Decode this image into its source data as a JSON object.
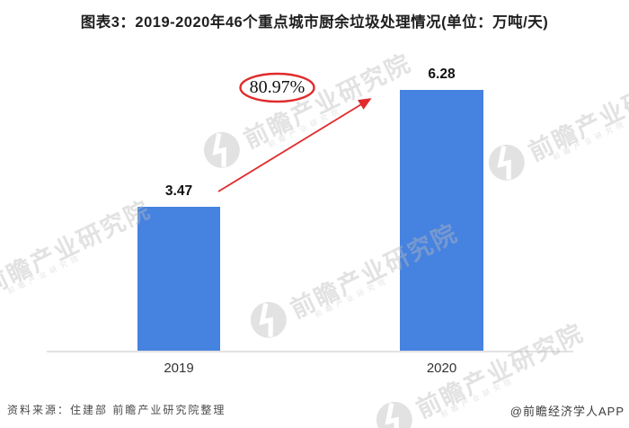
{
  "title": "图表3：2019-2020年46个重点城市厨余垃圾处理情况(单位：万吨/天)",
  "chart_data": {
    "type": "bar",
    "title": "图表3：2019-2020年46个重点城市厨余垃圾处理情况",
    "unit": "万吨/天",
    "categories": [
      "2019",
      "2020"
    ],
    "values": [
      3.47,
      6.28
    ],
    "value_labels": [
      "3.47",
      "6.28"
    ],
    "ylim": [
      0,
      6.8
    ],
    "grid": false,
    "legend": "none",
    "bar_color": "#4682E0",
    "annotation": {
      "text": "80.97%",
      "shape": "red-ellipse-with-arrow",
      "color": "#E02C2C",
      "meaning": "growth rate from 2019 to 2020"
    }
  },
  "watermark": {
    "text": "前瞻产业研究院"
  },
  "footer": {
    "source": "资料来源：住建部 前瞻产业研究院整理",
    "credit": "@前瞻经济学人APP"
  },
  "colors": {
    "bar": "#4682E0",
    "annotation_red": "#E02C2C",
    "axis": "#E3E3E3",
    "title_text": "#1F1F1F"
  }
}
